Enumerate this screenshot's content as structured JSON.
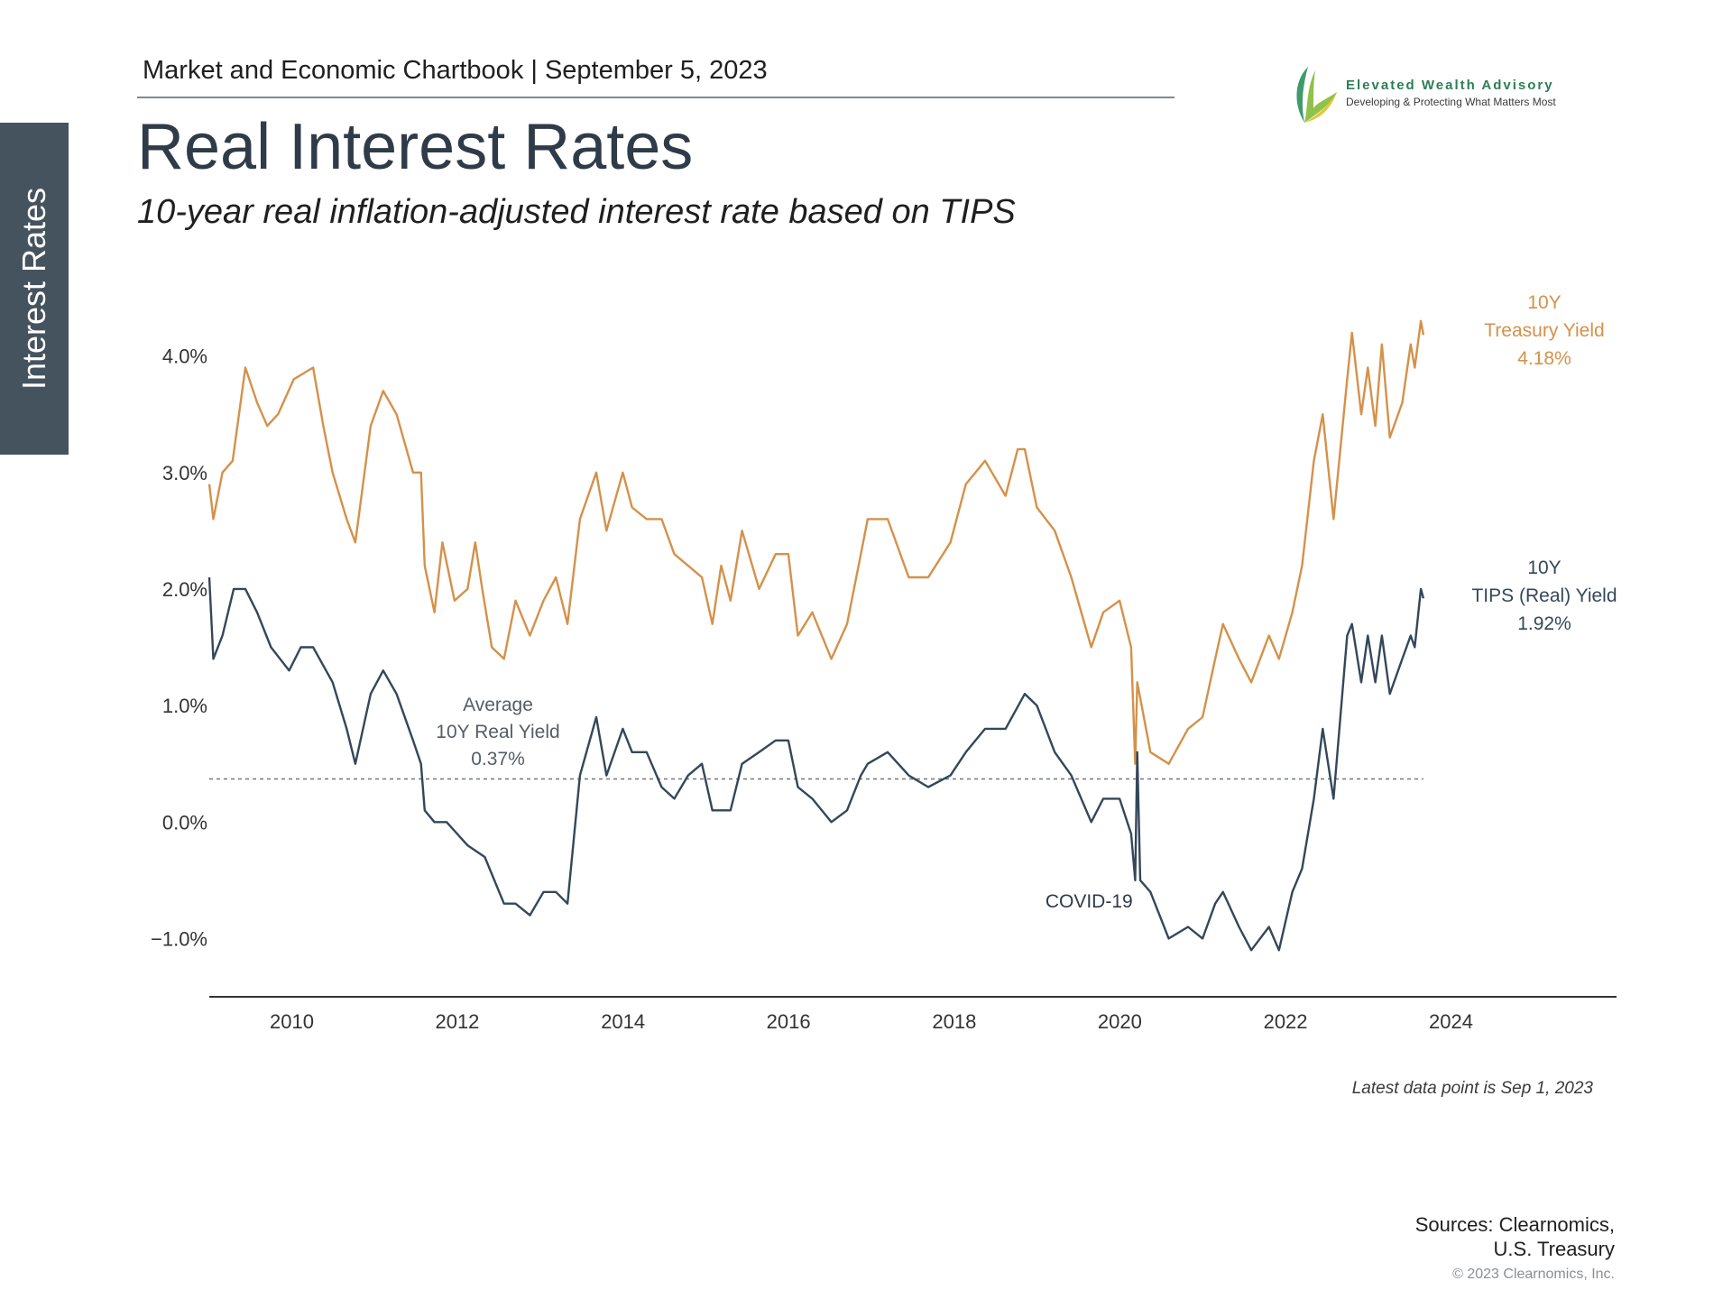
{
  "header": {
    "chartbook": "Market and Economic Chartbook | September 5, 2023",
    "side_tab": "Interest Rates",
    "title": "Real Interest Rates",
    "subtitle": "10-year real inflation-adjusted interest rate based on TIPS"
  },
  "logo": {
    "name": "Elevated Wealth Advisory",
    "tagline": "Developing & Protecting What Matters Most"
  },
  "colors": {
    "treasury": "#d4914a",
    "tips": "#34475a",
    "average_line": "#6f777e",
    "axis": "#333333",
    "side_tab_bg": "#45535f"
  },
  "chart_data": {
    "type": "line",
    "x_axis": {
      "type": "date",
      "range": [
        "2009-01-02",
        "2025-12-31"
      ],
      "ticks": [
        "2010",
        "2012",
        "2014",
        "2016",
        "2018",
        "2020",
        "2022",
        "2024"
      ]
    },
    "y_axis": {
      "range": [
        -1.5,
        4.5
      ],
      "ticks": [
        4.0,
        3.0,
        2.0,
        1.0,
        0.0,
        -1.0
      ],
      "tick_labels": [
        "4.0%",
        "3.0%",
        "2.0%",
        "1.0%",
        "0.0%",
        "−1.0%"
      ]
    },
    "grid": false,
    "series": [
      {
        "name": "10Y Treasury Yield",
        "label_lines": [
          "10Y",
          "Treasury Yield",
          "4.18%"
        ],
        "color": "#d4914a",
        "points": [
          [
            "2009-01-02",
            2.9
          ],
          [
            "2009-01-20",
            2.6
          ],
          [
            "2009-03-01",
            3.0
          ],
          [
            "2009-04-15",
            3.1
          ],
          [
            "2009-06-10",
            3.9
          ],
          [
            "2009-08-01",
            3.6
          ],
          [
            "2009-09-15",
            3.4
          ],
          [
            "2009-11-01",
            3.5
          ],
          [
            "2010-01-10",
            3.8
          ],
          [
            "2010-04-05",
            3.9
          ],
          [
            "2010-05-20",
            3.4
          ],
          [
            "2010-06-30",
            3.0
          ],
          [
            "2010-08-31",
            2.6
          ],
          [
            "2010-10-08",
            2.4
          ],
          [
            "2010-12-15",
            3.4
          ],
          [
            "2011-02-08",
            3.7
          ],
          [
            "2011-04-08",
            3.5
          ],
          [
            "2011-06-20",
            3.0
          ],
          [
            "2011-07-25",
            3.0
          ],
          [
            "2011-08-10",
            2.2
          ],
          [
            "2011-09-22",
            1.8
          ],
          [
            "2011-10-27",
            2.4
          ],
          [
            "2011-12-20",
            1.9
          ],
          [
            "2012-02-15",
            2.0
          ],
          [
            "2012-03-20",
            2.4
          ],
          [
            "2012-04-20",
            2.0
          ],
          [
            "2012-06-01",
            1.5
          ],
          [
            "2012-07-25",
            1.4
          ],
          [
            "2012-09-14",
            1.9
          ],
          [
            "2012-11-16",
            1.6
          ],
          [
            "2013-01-15",
            1.9
          ],
          [
            "2013-03-11",
            2.1
          ],
          [
            "2013-05-01",
            1.7
          ],
          [
            "2013-06-25",
            2.6
          ],
          [
            "2013-09-05",
            3.0
          ],
          [
            "2013-10-20",
            2.5
          ],
          [
            "2013-12-31",
            3.0
          ],
          [
            "2014-02-10",
            2.7
          ],
          [
            "2014-04-15",
            2.6
          ],
          [
            "2014-06-20",
            2.6
          ],
          [
            "2014-08-15",
            2.3
          ],
          [
            "2014-10-15",
            2.2
          ],
          [
            "2014-12-15",
            2.1
          ],
          [
            "2015-01-30",
            1.7
          ],
          [
            "2015-03-10",
            2.2
          ],
          [
            "2015-04-20",
            1.9
          ],
          [
            "2015-06-10",
            2.5
          ],
          [
            "2015-08-24",
            2.0
          ],
          [
            "2015-11-05",
            2.3
          ],
          [
            "2015-12-31",
            2.3
          ],
          [
            "2016-02-11",
            1.6
          ],
          [
            "2016-04-15",
            1.8
          ],
          [
            "2016-07-08",
            1.4
          ],
          [
            "2016-09-15",
            1.7
          ],
          [
            "2016-11-15",
            2.3
          ],
          [
            "2016-12-15",
            2.6
          ],
          [
            "2017-03-13",
            2.6
          ],
          [
            "2017-06-14",
            2.1
          ],
          [
            "2017-09-08",
            2.1
          ],
          [
            "2017-12-15",
            2.4
          ],
          [
            "2018-02-21",
            2.9
          ],
          [
            "2018-05-17",
            3.1
          ],
          [
            "2018-08-15",
            2.8
          ],
          [
            "2018-10-08",
            3.2
          ],
          [
            "2018-11-08",
            3.2
          ],
          [
            "2018-12-31",
            2.7
          ],
          [
            "2019-03-20",
            2.5
          ],
          [
            "2019-06-01",
            2.1
          ],
          [
            "2019-08-28",
            1.5
          ],
          [
            "2019-10-20",
            1.8
          ],
          [
            "2019-12-31",
            1.9
          ],
          [
            "2020-02-20",
            1.5
          ],
          [
            "2020-03-09",
            0.5
          ],
          [
            "2020-03-18",
            1.2
          ],
          [
            "2020-05-15",
            0.6
          ],
          [
            "2020-08-04",
            0.5
          ],
          [
            "2020-10-28",
            0.8
          ],
          [
            "2020-12-31",
            0.9
          ],
          [
            "2021-02-25",
            1.4
          ],
          [
            "2021-03-31",
            1.7
          ],
          [
            "2021-06-10",
            1.4
          ],
          [
            "2021-08-03",
            1.2
          ],
          [
            "2021-10-20",
            1.6
          ],
          [
            "2021-12-03",
            1.4
          ],
          [
            "2022-01-31",
            1.8
          ],
          [
            "2022-03-15",
            2.2
          ],
          [
            "2022-05-06",
            3.1
          ],
          [
            "2022-06-14",
            3.5
          ],
          [
            "2022-08-01",
            2.6
          ],
          [
            "2022-09-30",
            3.8
          ],
          [
            "2022-10-21",
            4.2
          ],
          [
            "2022-12-01",
            3.5
          ],
          [
            "2022-12-30",
            3.9
          ],
          [
            "2023-02-01",
            3.4
          ],
          [
            "2023-03-02",
            4.1
          ],
          [
            "2023-04-06",
            3.3
          ],
          [
            "2023-05-31",
            3.6
          ],
          [
            "2023-07-07",
            4.1
          ],
          [
            "2023-07-25",
            3.9
          ],
          [
            "2023-08-21",
            4.3
          ],
          [
            "2023-09-01",
            4.18
          ]
        ]
      },
      {
        "name": "10Y TIPS (Real) Yield",
        "label_lines": [
          "10Y",
          "TIPS (Real) Yield",
          "1.92%"
        ],
        "color": "#34475a",
        "points": [
          [
            "2009-01-02",
            2.1
          ],
          [
            "2009-01-20",
            1.4
          ],
          [
            "2009-03-01",
            1.6
          ],
          [
            "2009-04-20",
            2.0
          ],
          [
            "2009-06-10",
            2.0
          ],
          [
            "2009-08-01",
            1.8
          ],
          [
            "2009-10-01",
            1.5
          ],
          [
            "2009-12-20",
            1.3
          ],
          [
            "2010-02-10",
            1.5
          ],
          [
            "2010-04-05",
            1.5
          ],
          [
            "2010-06-30",
            1.2
          ],
          [
            "2010-08-31",
            0.8
          ],
          [
            "2010-10-08",
            0.5
          ],
          [
            "2010-12-15",
            1.1
          ],
          [
            "2011-02-08",
            1.3
          ],
          [
            "2011-04-08",
            1.1
          ],
          [
            "2011-06-20",
            0.7
          ],
          [
            "2011-07-25",
            0.5
          ],
          [
            "2011-08-10",
            0.1
          ],
          [
            "2011-09-22",
            0.0
          ],
          [
            "2011-11-15",
            0.0
          ],
          [
            "2012-02-15",
            -0.2
          ],
          [
            "2012-05-01",
            -0.3
          ],
          [
            "2012-07-25",
            -0.7
          ],
          [
            "2012-09-14",
            -0.7
          ],
          [
            "2012-11-16",
            -0.8
          ],
          [
            "2013-01-15",
            -0.6
          ],
          [
            "2013-03-11",
            -0.6
          ],
          [
            "2013-05-01",
            -0.7
          ],
          [
            "2013-06-25",
            0.4
          ],
          [
            "2013-09-05",
            0.9
          ],
          [
            "2013-10-20",
            0.4
          ],
          [
            "2013-12-31",
            0.8
          ],
          [
            "2014-02-10",
            0.6
          ],
          [
            "2014-04-15",
            0.6
          ],
          [
            "2014-06-20",
            0.3
          ],
          [
            "2014-08-15",
            0.2
          ],
          [
            "2014-10-15",
            0.4
          ],
          [
            "2014-12-15",
            0.5
          ],
          [
            "2015-01-30",
            0.1
          ],
          [
            "2015-04-20",
            0.1
          ],
          [
            "2015-06-10",
            0.5
          ],
          [
            "2015-08-24",
            0.6
          ],
          [
            "2015-11-05",
            0.7
          ],
          [
            "2015-12-31",
            0.7
          ],
          [
            "2016-02-11",
            0.3
          ],
          [
            "2016-04-15",
            0.2
          ],
          [
            "2016-07-08",
            0.0
          ],
          [
            "2016-09-15",
            0.1
          ],
          [
            "2016-11-15",
            0.4
          ],
          [
            "2016-12-15",
            0.5
          ],
          [
            "2017-03-13",
            0.6
          ],
          [
            "2017-06-14",
            0.4
          ],
          [
            "2017-09-08",
            0.3
          ],
          [
            "2017-12-15",
            0.4
          ],
          [
            "2018-02-21",
            0.6
          ],
          [
            "2018-05-17",
            0.8
          ],
          [
            "2018-08-15",
            0.8
          ],
          [
            "2018-11-08",
            1.1
          ],
          [
            "2018-12-31",
            1.0
          ],
          [
            "2019-03-20",
            0.6
          ],
          [
            "2019-06-01",
            0.4
          ],
          [
            "2019-08-28",
            0.0
          ],
          [
            "2019-10-20",
            0.2
          ],
          [
            "2019-12-31",
            0.2
          ],
          [
            "2020-02-20",
            -0.1
          ],
          [
            "2020-03-09",
            -0.5
          ],
          [
            "2020-03-18",
            0.6
          ],
          [
            "2020-03-31",
            -0.5
          ],
          [
            "2020-05-15",
            -0.6
          ],
          [
            "2020-08-04",
            -1.0
          ],
          [
            "2020-10-28",
            -0.9
          ],
          [
            "2020-12-31",
            -1.0
          ],
          [
            "2021-02-25",
            -0.7
          ],
          [
            "2021-03-31",
            -0.6
          ],
          [
            "2021-06-10",
            -0.9
          ],
          [
            "2021-08-03",
            -1.1
          ],
          [
            "2021-10-20",
            -0.9
          ],
          [
            "2021-12-03",
            -1.1
          ],
          [
            "2022-01-31",
            -0.6
          ],
          [
            "2022-03-15",
            -0.4
          ],
          [
            "2022-05-06",
            0.2
          ],
          [
            "2022-06-14",
            0.8
          ],
          [
            "2022-08-01",
            0.2
          ],
          [
            "2022-09-30",
            1.6
          ],
          [
            "2022-10-21",
            1.7
          ],
          [
            "2022-12-01",
            1.2
          ],
          [
            "2022-12-30",
            1.6
          ],
          [
            "2023-02-01",
            1.2
          ],
          [
            "2023-03-02",
            1.6
          ],
          [
            "2023-04-06",
            1.1
          ],
          [
            "2023-05-31",
            1.4
          ],
          [
            "2023-07-07",
            1.6
          ],
          [
            "2023-07-25",
            1.5
          ],
          [
            "2023-08-21",
            2.0
          ],
          [
            "2023-09-01",
            1.92
          ]
        ]
      }
    ],
    "average_line": {
      "value": 0.37,
      "label_lines": [
        "Average",
        "10Y Real Yield",
        "0.37%"
      ],
      "style": "dashed"
    },
    "annotations": [
      {
        "text": "COVID-19",
        "x": "2020-03-18",
        "y": -0.5
      }
    ]
  },
  "footer": {
    "latest": "Latest data point is Sep 1, 2023",
    "sources_line1": "Sources: Clearnomics,",
    "sources_line2": "U.S. Treasury",
    "copyright": "© 2023 Clearnomics, Inc."
  }
}
